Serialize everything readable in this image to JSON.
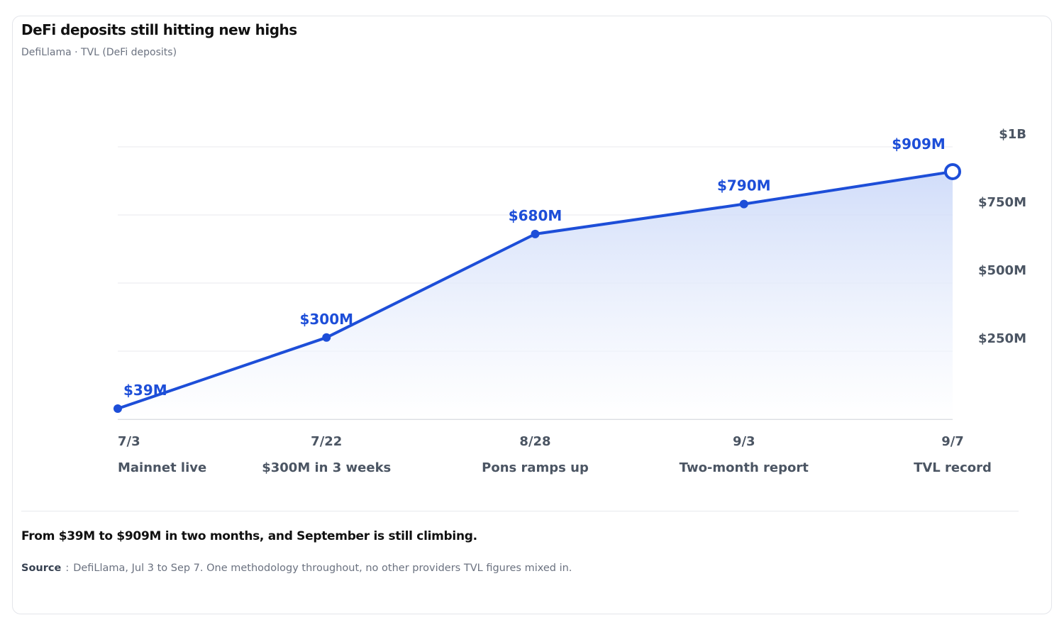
{
  "header": {
    "title": "DeFi deposits still hitting new highs",
    "subtitle": "DefiLlama · TVL (DeFi deposits)"
  },
  "footer": {
    "takeaway": "From $39M to $909M in two months, and September is still climbing.",
    "source_label": "Source",
    "source_sep": ":",
    "source_text": "DefiLlama, Jul 3 to Sep 7. One methodology throughout, no other providers TVL figures mixed in."
  },
  "colors": {
    "line": "#1d4ed8",
    "area_top": "#c9d7f8",
    "grid": "#e8eaee",
    "axis": "#cfd3da"
  },
  "chart_data": {
    "type": "area",
    "title": "DeFi deposits still hitting new highs",
    "x": [
      "7/3",
      "7/22",
      "8/28",
      "9/3",
      "9/7"
    ],
    "x_annotations": [
      "Mainnet live",
      "$300M in 3 weeks",
      "Pons ramps up",
      "Two-month report",
      "TVL record"
    ],
    "values_musd": [
      39,
      300,
      680,
      790,
      909
    ],
    "data_labels": [
      "$39M",
      "$300M",
      "$680M",
      "$790M",
      "$909M"
    ],
    "y_ticks": [
      250,
      500,
      750,
      1000
    ],
    "y_tick_labels": [
      "$250M",
      "$500M",
      "$750M",
      "$1B"
    ],
    "ylim": [
      0,
      1000
    ],
    "y_axis_position": "right",
    "grid": true,
    "legend": "none",
    "last_point_marker": "hollow"
  }
}
